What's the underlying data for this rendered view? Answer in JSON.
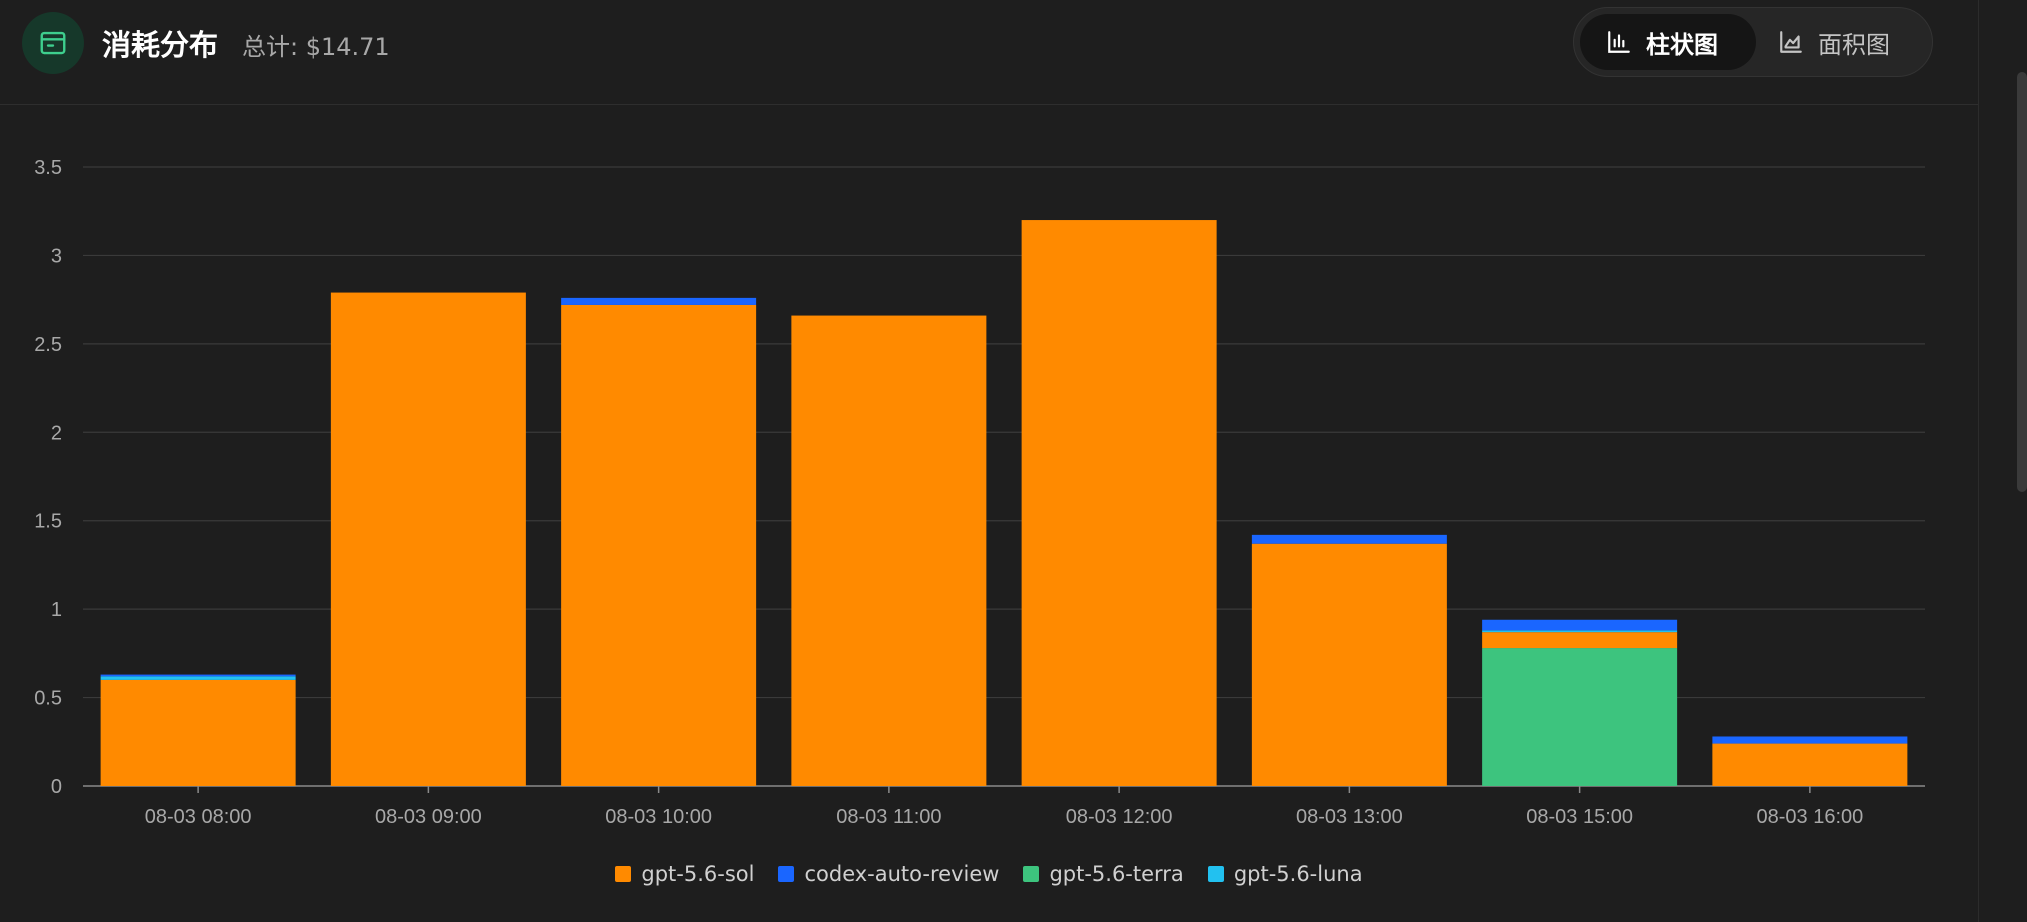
{
  "header": {
    "title": "消耗分布",
    "total_label": "总计: $14.71",
    "icon": "wallet-icon",
    "accent_color": "#3ecf8e"
  },
  "toggle": {
    "bar_label": "柱状图",
    "area_label": "面积图",
    "active": "bar"
  },
  "chart_data": {
    "type": "bar",
    "stacked": true,
    "categories": [
      "08-03 08:00",
      "08-03 09:00",
      "08-03 10:00",
      "08-03 11:00",
      "08-03 12:00",
      "08-03 13:00",
      "08-03 15:00",
      "08-03 16:00"
    ],
    "series": [
      {
        "name": "gpt-5.6-terra",
        "color": "#3dc47e",
        "values": [
          0,
          0,
          0,
          0,
          0,
          0,
          0.78,
          0
        ]
      },
      {
        "name": "gpt-5.6-sol",
        "color": "#ff8a00",
        "values": [
          0.6,
          2.79,
          2.72,
          2.66,
          3.2,
          1.37,
          0.09,
          0.24
        ]
      },
      {
        "name": "gpt-5.6-luna",
        "color": "#22c1f0",
        "values": [
          0.02,
          0,
          0,
          0,
          0,
          0,
          0.01,
          0
        ]
      },
      {
        "name": "codex-auto-review",
        "color": "#1a66ff",
        "values": [
          0.01,
          0,
          0.04,
          0,
          0,
          0.05,
          0.06,
          0.04
        ]
      }
    ],
    "legend_order": [
      "gpt-5.6-sol",
      "codex-auto-review",
      "gpt-5.6-terra",
      "gpt-5.6-luna"
    ],
    "ylim": [
      0,
      3.5
    ],
    "yticks": [
      "0",
      "0.5",
      "1",
      "1.5",
      "2",
      "2.5",
      "3",
      "3.5"
    ],
    "grid": true,
    "legend_position": "bottom-center"
  }
}
